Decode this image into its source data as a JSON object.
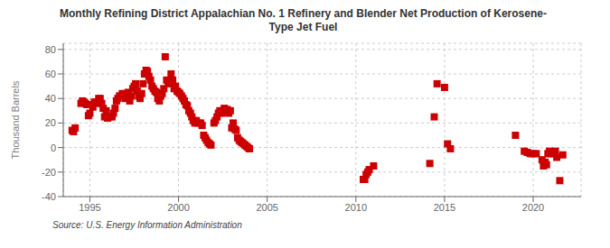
{
  "chart_data": {
    "type": "scatter",
    "title": "Monthly Refining District Appalachian No. 1 Refinery and Blender Net Production of Kerosene-\nType Jet Fuel",
    "ylabel": "Thousand Barrels",
    "annotations": [
      "Source: U.S. Energy Information Administration"
    ],
    "color": "#cc0000",
    "marker": "square",
    "grid": true,
    "xlim": [
      1993.5,
      2022.7
    ],
    "ylim": [
      -40,
      85
    ],
    "xticks": [
      1995,
      2000,
      2005,
      2010,
      2015,
      2020
    ],
    "yticks": [
      -40,
      -20,
      0,
      20,
      40,
      60,
      80
    ],
    "x": [
      1994.0,
      1994.08,
      1994.17,
      1994.5,
      1994.58,
      1994.67,
      1994.75,
      1994.83,
      1994.92,
      1995.0,
      1995.08,
      1995.17,
      1995.25,
      1995.33,
      1995.42,
      1995.5,
      1995.58,
      1995.67,
      1995.75,
      1995.83,
      1995.92,
      1996.0,
      1996.08,
      1996.25,
      1996.33,
      1996.42,
      1996.5,
      1996.58,
      1996.67,
      1996.75,
      1996.83,
      1997.0,
      1997.08,
      1997.17,
      1997.25,
      1997.33,
      1997.42,
      1997.5,
      1997.58,
      1997.67,
      1997.75,
      1997.83,
      1997.92,
      1998.0,
      1998.08,
      1998.17,
      1998.25,
      1998.33,
      1998.42,
      1998.5,
      1998.58,
      1998.67,
      1998.75,
      1998.83,
      1998.92,
      1999.0,
      1999.08,
      1999.17,
      1999.25,
      1999.33,
      1999.42,
      1999.5,
      1999.58,
      1999.67,
      1999.75,
      1999.83,
      1999.92,
      2000.0,
      2000.08,
      2000.17,
      2000.25,
      2000.33,
      2000.42,
      2000.5,
      2000.58,
      2000.67,
      2000.75,
      2000.83,
      2000.92,
      2001.0,
      2001.08,
      2001.25,
      2001.33,
      2001.42,
      2001.5,
      2001.58,
      2001.67,
      2001.75,
      2001.83,
      2002.0,
      2002.08,
      2002.17,
      2002.25,
      2002.33,
      2002.42,
      2002.5,
      2002.58,
      2002.67,
      2002.75,
      2002.83,
      2002.92,
      2003.0,
      2003.08,
      2003.17,
      2003.25,
      2003.33,
      2003.42,
      2003.5,
      2003.58,
      2003.67,
      2003.75,
      2003.83,
      2003.92,
      2004.0,
      2010.42,
      2010.5,
      2010.58,
      2010.67,
      2010.75,
      2011.0,
      2014.17,
      2014.42,
      2014.58,
      2015.0,
      2015.17,
      2015.33,
      2019.0,
      2019.5,
      2019.67,
      2019.83,
      2020.0,
      2020.17,
      2020.5,
      2020.58,
      2020.67,
      2020.75,
      2020.83,
      2020.92,
      2021.0,
      2021.08,
      2021.17,
      2021.25,
      2021.33,
      2021.5,
      2021.67
    ],
    "values": [
      14,
      13,
      16,
      36,
      38,
      37,
      36,
      35,
      26,
      28,
      35,
      33,
      37,
      37,
      36,
      40,
      40,
      36,
      32,
      25,
      30,
      24,
      25,
      25,
      28,
      32,
      38,
      40,
      42,
      42,
      44,
      40,
      44,
      45,
      38,
      42,
      48,
      50,
      52,
      46,
      42,
      40,
      44,
      52,
      60,
      63,
      62,
      58,
      55,
      50,
      48,
      46,
      45,
      40,
      38,
      42,
      44,
      48,
      74,
      55,
      53,
      52,
      60,
      55,
      48,
      50,
      46,
      45,
      44,
      42,
      40,
      38,
      35,
      34,
      30,
      28,
      25,
      22,
      20,
      22,
      20,
      20,
      18,
      10,
      8,
      6,
      4,
      3,
      2,
      20,
      22,
      25,
      28,
      30,
      28,
      30,
      32,
      30,
      31,
      28,
      30,
      16,
      20,
      15,
      14,
      8,
      6,
      5,
      4,
      3,
      2,
      1,
      0,
      -1,
      -26,
      -26,
      -22,
      -20,
      -18,
      -15,
      -13,
      25,
      52,
      49,
      3,
      -1,
      10,
      -3,
      -4,
      -5,
      -5,
      -5,
      -10,
      -15,
      -12,
      -14,
      -5,
      -3,
      -5,
      -4,
      -5,
      -3,
      -8,
      -27,
      -6
    ]
  }
}
